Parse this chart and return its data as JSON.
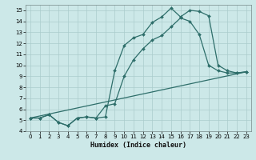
{
  "xlabel": "Humidex (Indice chaleur)",
  "bg_color": "#cce8e8",
  "grid_color": "#aacccc",
  "line_color": "#2e6e6a",
  "xlim": [
    -0.5,
    23.5
  ],
  "ylim": [
    4,
    15.5
  ],
  "xticks": [
    0,
    1,
    2,
    3,
    4,
    5,
    6,
    7,
    8,
    9,
    10,
    11,
    12,
    13,
    14,
    15,
    16,
    17,
    18,
    19,
    20,
    21,
    22,
    23
  ],
  "yticks": [
    4,
    5,
    6,
    7,
    8,
    9,
    10,
    11,
    12,
    13,
    14,
    15
  ],
  "line1_x": [
    0,
    1,
    2,
    3,
    4,
    5,
    6,
    7,
    8,
    9,
    10,
    11,
    12,
    13,
    14,
    15,
    16,
    17,
    18,
    19,
    20,
    21,
    22,
    23
  ],
  "line1_y": [
    5.2,
    5.2,
    5.5,
    4.8,
    4.5,
    5.2,
    5.3,
    5.2,
    5.3,
    9.5,
    11.8,
    12.5,
    12.8,
    13.9,
    14.4,
    15.2,
    14.4,
    15.0,
    14.9,
    14.5,
    10.0,
    9.5,
    9.3,
    9.4
  ],
  "line2_x": [
    0,
    1,
    2,
    3,
    4,
    5,
    6,
    7,
    8,
    9,
    10,
    11,
    12,
    13,
    14,
    15,
    16,
    17,
    18,
    19,
    20,
    21,
    22,
    23
  ],
  "line2_y": [
    5.2,
    5.2,
    5.5,
    4.8,
    4.5,
    5.2,
    5.3,
    5.2,
    6.3,
    6.5,
    9.0,
    10.5,
    11.5,
    12.3,
    12.7,
    13.5,
    14.3,
    14.0,
    12.8,
    10.0,
    9.5,
    9.3,
    9.3,
    9.4
  ],
  "line3_x": [
    0,
    23
  ],
  "line3_y": [
    5.2,
    9.4
  ]
}
